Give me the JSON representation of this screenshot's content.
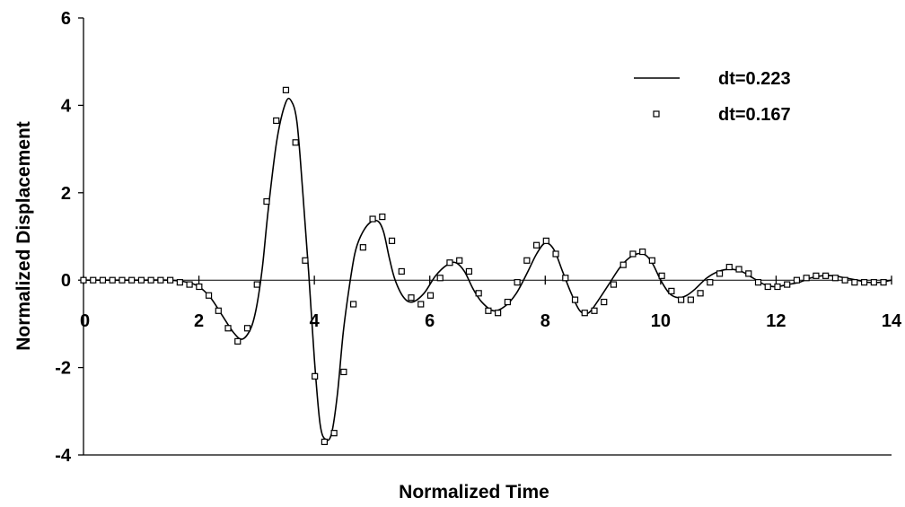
{
  "chart_data": {
    "type": "line",
    "xlabel": "Normalized Time",
    "ylabel": "Normalized Displacement",
    "xlim": [
      0,
      14
    ],
    "ylim": [
      -4,
      6
    ],
    "xticks": [
      "0",
      "2",
      "4",
      "6",
      "8",
      "10",
      "12",
      "14"
    ],
    "yticks": [
      "-4",
      "-2",
      "0",
      "2",
      "4",
      "6"
    ],
    "legend_position": "top-right",
    "grid": false,
    "series": [
      {
        "name": "dt=0.223",
        "style": "line",
        "color": "#000000",
        "x": [
          0,
          0.5,
          1.0,
          1.5,
          1.8,
          2.0,
          2.2,
          2.4,
          2.6,
          2.75,
          2.9,
          3.0,
          3.1,
          3.2,
          3.35,
          3.5,
          3.6,
          3.7,
          3.8,
          3.9,
          4.0,
          4.1,
          4.2,
          4.3,
          4.4,
          4.5,
          4.6,
          4.7,
          4.8,
          4.95,
          5.1,
          5.2,
          5.3,
          5.4,
          5.55,
          5.7,
          5.9,
          6.1,
          6.3,
          6.45,
          6.6,
          6.75,
          6.9,
          7.1,
          7.3,
          7.5,
          7.7,
          7.85,
          8.0,
          8.15,
          8.3,
          8.45,
          8.6,
          8.75,
          8.9,
          9.1,
          9.3,
          9.5,
          9.7,
          9.85,
          10.0,
          10.15,
          10.3,
          10.45,
          10.6,
          10.8,
          11.0,
          11.2,
          11.4,
          11.6,
          11.8,
          12.0,
          12.2,
          12.4,
          12.6,
          12.8,
          13.0,
          13.2,
          13.4,
          13.6,
          13.8,
          14.0
        ],
        "y": [
          0,
          0,
          0,
          0,
          -0.05,
          -0.15,
          -0.4,
          -0.8,
          -1.2,
          -1.35,
          -1.1,
          -0.6,
          0.3,
          1.6,
          3.2,
          4.05,
          4.1,
          3.6,
          2.0,
          0.2,
          -1.8,
          -3.3,
          -3.65,
          -3.5,
          -2.6,
          -1.2,
          -0.2,
          0.6,
          1.0,
          1.3,
          1.35,
          1.1,
          0.5,
          0.0,
          -0.4,
          -0.5,
          -0.3,
          0.1,
          0.35,
          0.4,
          0.2,
          -0.2,
          -0.5,
          -0.7,
          -0.6,
          -0.3,
          0.2,
          0.6,
          0.85,
          0.7,
          0.2,
          -0.3,
          -0.7,
          -0.75,
          -0.5,
          -0.1,
          0.3,
          0.55,
          0.6,
          0.4,
          0.0,
          -0.3,
          -0.4,
          -0.35,
          -0.2,
          0.05,
          0.2,
          0.25,
          0.2,
          0.05,
          -0.1,
          -0.15,
          -0.1,
          -0.05,
          0.05,
          0.1,
          0.1,
          0.05,
          0.0,
          -0.05,
          -0.05,
          0.0
        ]
      },
      {
        "name": "dt=0.167",
        "style": "markers",
        "marker": "square",
        "color": "#000000",
        "x": [
          0.0,
          0.167,
          0.334,
          0.501,
          0.668,
          0.835,
          1.002,
          1.169,
          1.336,
          1.503,
          1.67,
          1.837,
          2.004,
          2.171,
          2.338,
          2.505,
          2.672,
          2.839,
          3.006,
          3.173,
          3.34,
          3.507,
          3.674,
          3.841,
          4.008,
          4.175,
          4.342,
          4.509,
          4.676,
          4.843,
          5.01,
          5.177,
          5.344,
          5.511,
          5.678,
          5.845,
          6.012,
          6.179,
          6.346,
          6.513,
          6.68,
          6.847,
          7.014,
          7.181,
          7.348,
          7.515,
          7.682,
          7.849,
          8.016,
          8.183,
          8.35,
          8.517,
          8.684,
          8.851,
          9.018,
          9.185,
          9.352,
          9.519,
          9.686,
          9.853,
          10.02,
          10.187,
          10.354,
          10.521,
          10.688,
          10.855,
          11.022,
          11.189,
          11.356,
          11.523,
          11.69,
          11.857,
          12.024,
          12.191,
          12.358,
          12.525,
          12.692,
          12.859,
          13.026,
          13.193,
          13.36,
          13.527,
          13.694,
          13.861
        ],
        "y": [
          0.0,
          0.0,
          0.0,
          0.0,
          0.0,
          0.0,
          0.0,
          0.0,
          0.0,
          0.0,
          -0.05,
          -0.1,
          -0.15,
          -0.35,
          -0.7,
          -1.1,
          -1.4,
          -1.1,
          -0.1,
          1.8,
          3.65,
          4.35,
          3.15,
          0.45,
          -2.2,
          -3.7,
          -3.5,
          -2.1,
          -0.55,
          0.75,
          1.4,
          1.45,
          0.9,
          0.2,
          -0.4,
          -0.55,
          -0.35,
          0.05,
          0.4,
          0.45,
          0.2,
          -0.3,
          -0.7,
          -0.75,
          -0.5,
          -0.05,
          0.45,
          0.8,
          0.9,
          0.6,
          0.05,
          -0.45,
          -0.75,
          -0.7,
          -0.5,
          -0.1,
          0.35,
          0.6,
          0.65,
          0.45,
          0.1,
          -0.25,
          -0.45,
          -0.45,
          -0.3,
          -0.05,
          0.15,
          0.3,
          0.25,
          0.15,
          -0.05,
          -0.15,
          -0.15,
          -0.1,
          0.0,
          0.05,
          0.1,
          0.1,
          0.05,
          0.0,
          -0.05,
          -0.05,
          -0.05,
          -0.05
        ]
      }
    ]
  }
}
